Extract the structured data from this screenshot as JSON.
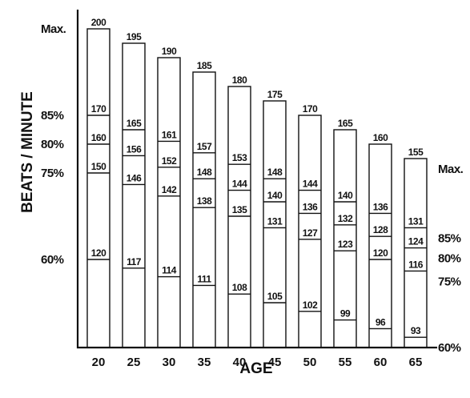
{
  "chart_data": {
    "type": "bar",
    "xlabel": "AGE",
    "ylabel": "BEATS / MINUTE",
    "categories": [
      "20",
      "25",
      "30",
      "35",
      "40",
      "45",
      "50",
      "55",
      "60",
      "65"
    ],
    "series": [
      {
        "name": "Max.",
        "values": [
          200,
          195,
          190,
          185,
          180,
          175,
          170,
          165,
          160,
          155
        ]
      },
      {
        "name": "85%",
        "values": [
          170,
          165,
          161,
          157,
          153,
          148,
          144,
          140,
          136,
          131
        ]
      },
      {
        "name": "80%",
        "values": [
          160,
          156,
          152,
          148,
          144,
          140,
          136,
          132,
          128,
          124
        ]
      },
      {
        "name": "75%",
        "values": [
          150,
          146,
          142,
          138,
          135,
          131,
          127,
          123,
          120,
          116
        ]
      },
      {
        "name": "60%",
        "values": [
          120,
          117,
          114,
          111,
          108,
          105,
          102,
          99,
          96,
          93
        ]
      }
    ],
    "left_labels": [
      "Max.",
      "85%",
      "80%",
      "75%",
      "60%"
    ],
    "right_labels": [
      "Max.",
      "85%",
      "80%",
      "75%",
      "60%"
    ],
    "ylim": [
      0,
      200
    ],
    "grid": false,
    "legend": "none"
  }
}
